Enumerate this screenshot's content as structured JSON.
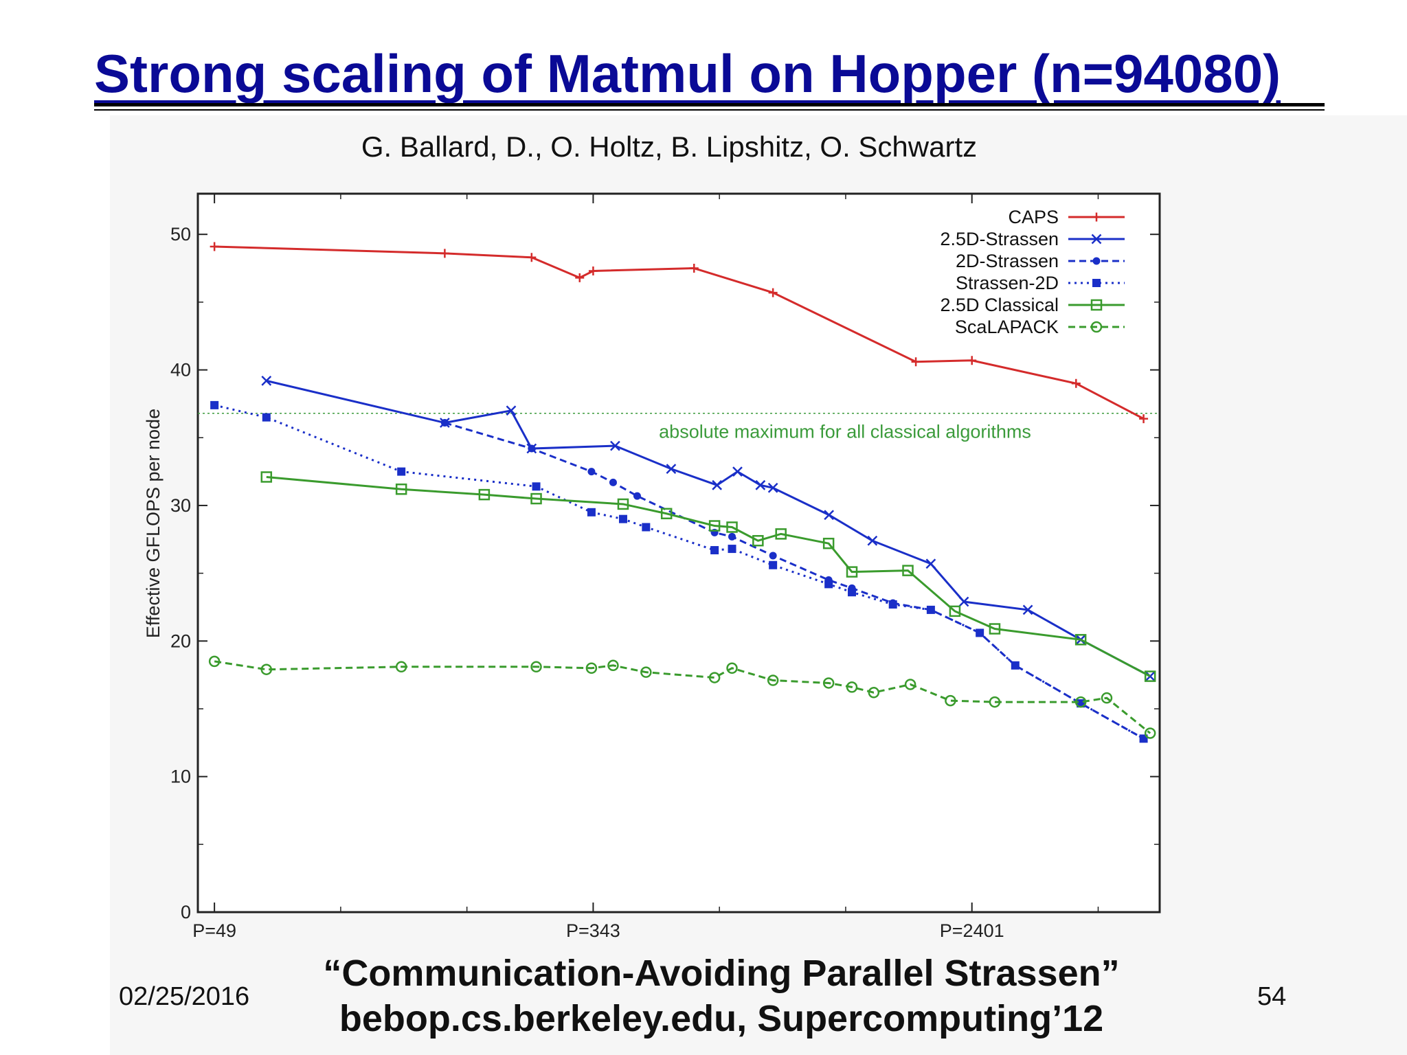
{
  "slide": {
    "title": "Strong scaling of Matmul on Hopper (n=94080)",
    "authors": "G. Ballard, D., O. Holtz, B. Lipshitz, O. Schwartz",
    "citation_line1": "“Communication-Avoiding Parallel Strassen”",
    "citation_line2": "bebop.cs.berkeley.edu, Supercomputing’12",
    "date": "02/25/2016",
    "page_number": "54"
  },
  "chart_data": {
    "type": "line",
    "title": "",
    "xlabel": "",
    "ylabel": "Effective GFLOPS per node",
    "x_scale": "log",
    "x_ticks": [
      {
        "value": 49,
        "label": "P=49"
      },
      {
        "value": 343,
        "label": "P=343"
      },
      {
        "value": 2401,
        "label": "P=2401"
      }
    ],
    "y_ticks": [
      0,
      10,
      20,
      30,
      40,
      50
    ],
    "xlim": [
      45,
      6300
    ],
    "ylim": [
      0,
      53
    ],
    "legend_position": "top-right",
    "reference_line": {
      "y": 36.8,
      "label": "absolute maximum for all classical algorithms",
      "color": "#3b9b3b"
    },
    "series": [
      {
        "name": "CAPS",
        "color": "#d42b2b",
        "dash": "solid",
        "marker": "plus",
        "points": [
          [
            49,
            49.1
          ],
          [
            160,
            48.6
          ],
          [
            250,
            48.3
          ],
          [
            320,
            46.8
          ],
          [
            343,
            47.3
          ],
          [
            576,
            47.5
          ],
          [
            864,
            45.7
          ],
          [
            1800,
            40.6
          ],
          [
            2401,
            40.7
          ],
          [
            4100,
            39.0
          ],
          [
            5800,
            36.4
          ]
        ]
      },
      {
        "name": "2.5D-Strassen",
        "color": "#1a2fc8",
        "dash": "solid",
        "marker": "x",
        "points": [
          [
            64,
            39.2
          ],
          [
            160,
            36.1
          ],
          [
            225,
            37.0
          ],
          [
            250,
            34.2
          ],
          [
            384,
            34.4
          ],
          [
            512,
            32.7
          ],
          [
            648,
            31.5
          ],
          [
            720,
            32.5
          ],
          [
            810,
            31.5
          ],
          [
            864,
            31.3
          ],
          [
            1152,
            29.3
          ],
          [
            1440,
            27.4
          ],
          [
            1944,
            25.7
          ],
          [
            2304,
            22.9
          ],
          [
            3200,
            22.3
          ],
          [
            4200,
            20.1
          ],
          [
            6000,
            17.4
          ]
        ]
      },
      {
        "name": "2D-Strassen",
        "color": "#1a2fc8",
        "dash": "dashed",
        "marker": "circle",
        "points": [
          [
            160,
            36.1
          ],
          [
            250,
            34.2
          ],
          [
            340,
            32.5
          ],
          [
            380,
            31.7
          ],
          [
            430,
            30.7
          ],
          [
            640,
            28.0
          ],
          [
            700,
            27.7
          ],
          [
            864,
            26.3
          ],
          [
            1150,
            24.5
          ],
          [
            1296,
            23.9
          ],
          [
            1600,
            22.8
          ],
          [
            1944,
            22.3
          ],
          [
            2500,
            20.6
          ],
          [
            3000,
            18.2
          ],
          [
            4200,
            15.4
          ],
          [
            5800,
            12.8
          ]
        ]
      },
      {
        "name": "Strassen-2D",
        "color": "#1a2fc8",
        "dash": "dotted",
        "marker": "square",
        "points": [
          [
            49,
            37.4
          ],
          [
            64,
            36.5
          ],
          [
            128,
            32.5
          ],
          [
            256,
            31.4
          ],
          [
            340,
            29.5
          ],
          [
            400,
            29.0
          ],
          [
            450,
            28.4
          ],
          [
            640,
            26.7
          ],
          [
            700,
            26.8
          ],
          [
            864,
            25.6
          ],
          [
            1150,
            24.2
          ],
          [
            1296,
            23.6
          ],
          [
            1600,
            22.7
          ],
          [
            1944,
            22.3
          ],
          [
            2500,
            20.6
          ],
          [
            3000,
            18.2
          ],
          [
            4200,
            15.4
          ],
          [
            5800,
            12.8
          ]
        ]
      },
      {
        "name": "2.5D Classical",
        "color": "#3a9b2d",
        "dash": "solid",
        "marker": "square-open",
        "points": [
          [
            64,
            32.1
          ],
          [
            128,
            31.2
          ],
          [
            196,
            30.8
          ],
          [
            256,
            30.5
          ],
          [
            400,
            30.1
          ],
          [
            500,
            29.4
          ],
          [
            640,
            28.5
          ],
          [
            700,
            28.4
          ],
          [
            800,
            27.4
          ],
          [
            900,
            27.9
          ],
          [
            1150,
            27.2
          ],
          [
            1296,
            25.1
          ],
          [
            1728,
            25.2
          ],
          [
            2200,
            22.2
          ],
          [
            2700,
            20.9
          ],
          [
            4200,
            20.1
          ],
          [
            6000,
            17.4
          ]
        ]
      },
      {
        "name": "ScaLAPACK",
        "color": "#3a9b2d",
        "dash": "dashed",
        "marker": "circle-open",
        "points": [
          [
            49,
            18.5
          ],
          [
            64,
            17.9
          ],
          [
            128,
            18.1
          ],
          [
            256,
            18.1
          ],
          [
            340,
            18.0
          ],
          [
            380,
            18.2
          ],
          [
            450,
            17.7
          ],
          [
            640,
            17.3
          ],
          [
            700,
            18.0
          ],
          [
            864,
            17.1
          ],
          [
            1150,
            16.9
          ],
          [
            1296,
            16.6
          ],
          [
            1450,
            16.2
          ],
          [
            1750,
            16.8
          ],
          [
            2150,
            15.6
          ],
          [
            2700,
            15.5
          ],
          [
            4200,
            15.5
          ],
          [
            4800,
            15.8
          ],
          [
            6000,
            13.2
          ]
        ]
      }
    ]
  }
}
